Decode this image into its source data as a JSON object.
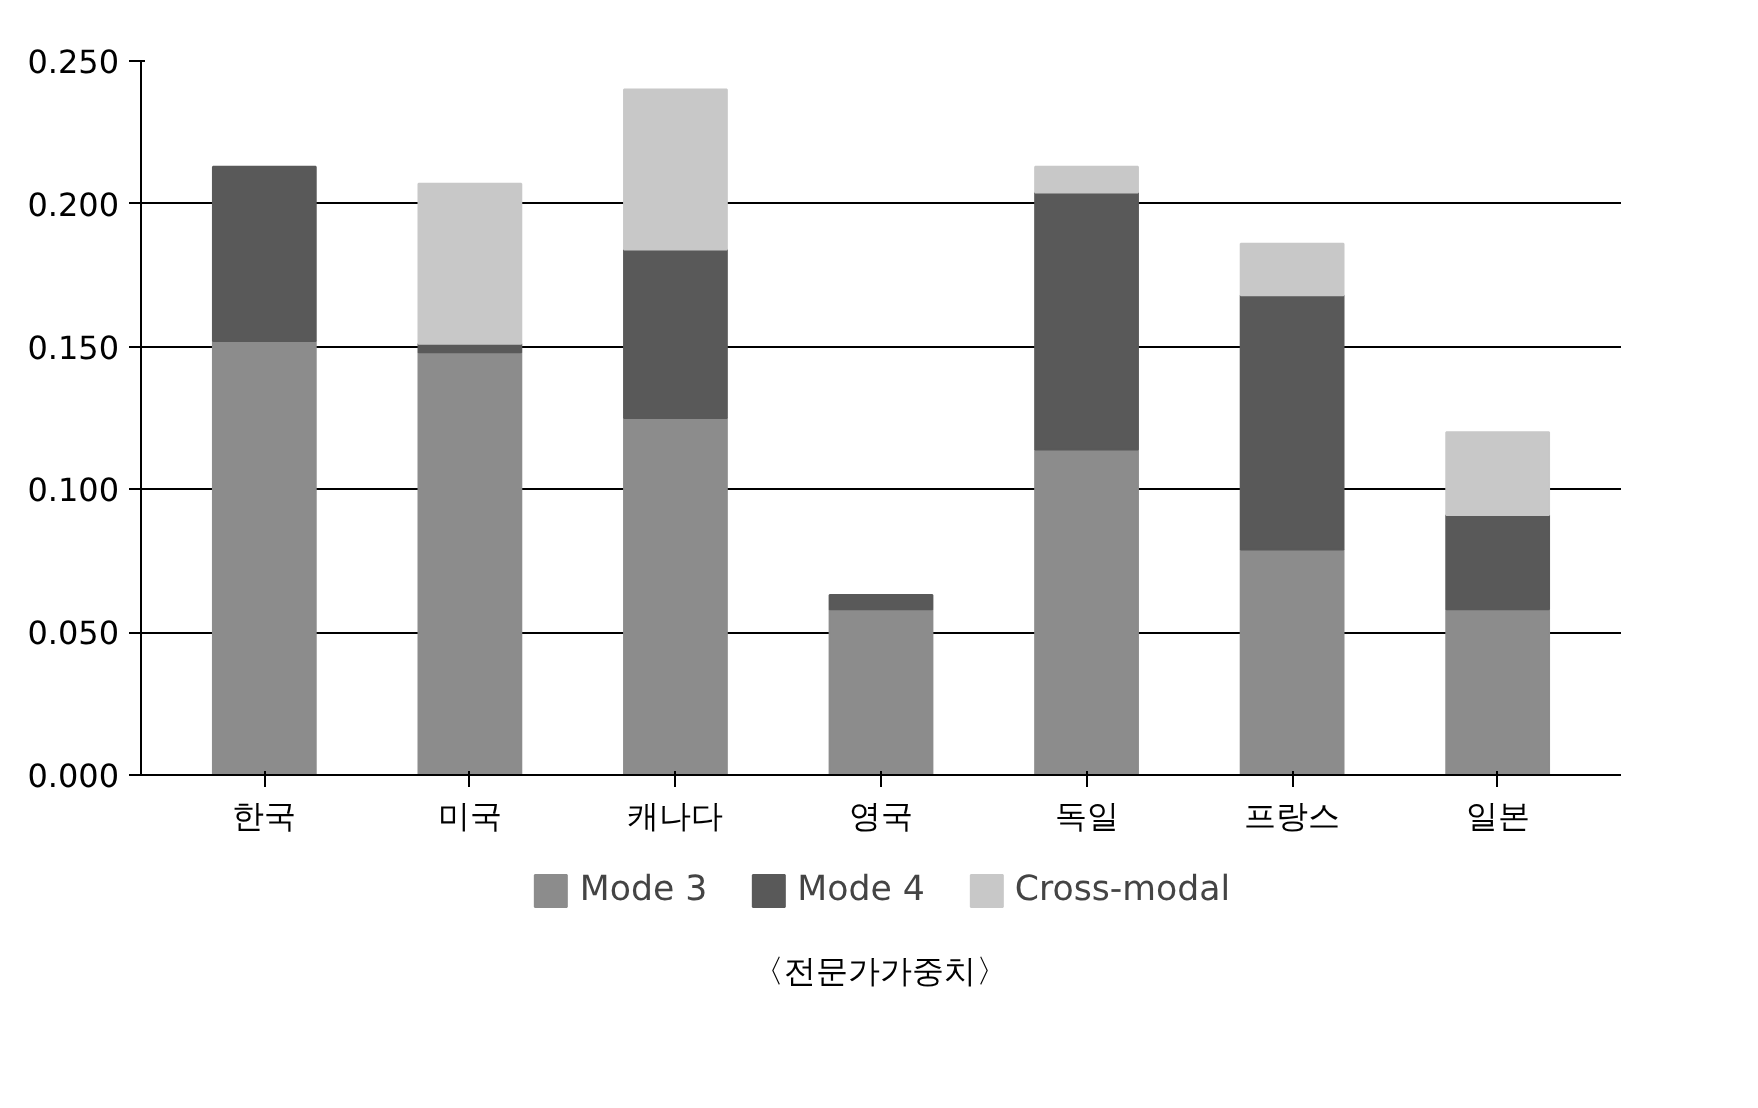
{
  "chart_data": {
    "type": "bar",
    "stacked": true,
    "categories": [
      "한국",
      "미국",
      "캐나다",
      "영국",
      "독일",
      "프랑스",
      "일본"
    ],
    "series": [
      {
        "name": "Mode 3",
        "color": "#8c8c8c",
        "values": [
          0.152,
          0.148,
          0.125,
          0.058,
          0.114,
          0.079,
          0.058
        ]
      },
      {
        "name": "Mode 4",
        "color": "#595959",
        "values": [
          0.061,
          0.003,
          0.059,
          0.005,
          0.09,
          0.089,
          0.033
        ]
      },
      {
        "name": "Cross-modal",
        "color": "#c8c8c8",
        "values": [
          null,
          0.056,
          0.056,
          null,
          0.009,
          0.018,
          0.029
        ]
      }
    ],
    "ylim": [
      0,
      0.25
    ],
    "yticks": [
      {
        "value": 0,
        "label": "0.000"
      },
      {
        "value": 0.05,
        "label": "0.050"
      },
      {
        "value": 0.1,
        "label": "0.100"
      },
      {
        "value": 0.15,
        "label": "0.150"
      },
      {
        "value": 0.2,
        "label": "0.200"
      },
      {
        "value": 0.25,
        "label": "0.250"
      }
    ],
    "grid": "y",
    "legend": "bottom",
    "annotations": [
      "〈전문가가중치〉"
    ]
  }
}
